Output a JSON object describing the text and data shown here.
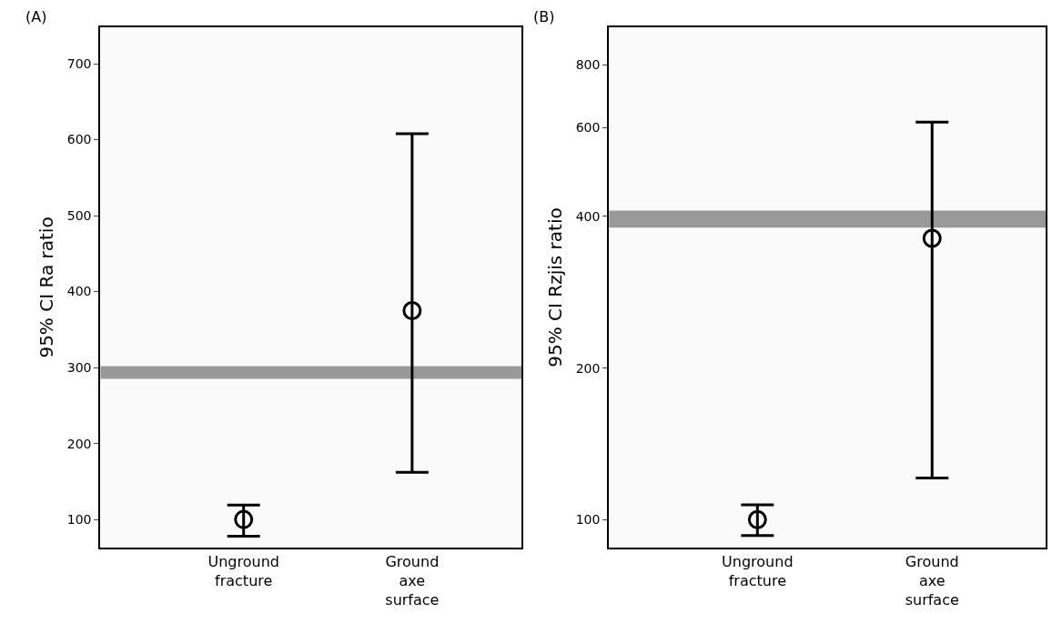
{
  "chart_data": [
    {
      "type": "scatter",
      "title": "(A)",
      "ylabel": "95% CI Ra ratio",
      "categories": [
        "Unground fracture",
        "Ground axe surface"
      ],
      "values": [
        100,
        375
      ],
      "errors": [
        [
          78,
          119
        ],
        [
          162,
          608
        ]
      ],
      "color": "#000000",
      "marker": "circle",
      "ylim": [
        63,
        748
      ],
      "yticks": [
        100,
        200,
        300,
        400,
        500,
        600,
        700
      ],
      "bands": [
        {
          "axis": "y",
          "from": 285,
          "to": 302,
          "color": "#999999"
        }
      ]
    },
    {
      "type": "scatter",
      "title": "(B)",
      "ylabel": "95% CI Rzjis ratio",
      "categories": [
        "Unground fracture",
        "Ground axe surface"
      ],
      "values": [
        100,
        362
      ],
      "errors": [
        [
          93,
          107
        ],
        [
          121,
          616
        ]
      ],
      "color": "#000000",
      "marker": "circle",
      "log": true,
      "ylim": [
        88,
        950
      ],
      "yticks": [
        100,
        200,
        400,
        600,
        800
      ],
      "bands": [
        {
          "axis": "y",
          "from": 380,
          "to": 411,
          "color": "#999999"
        }
      ]
    }
  ]
}
